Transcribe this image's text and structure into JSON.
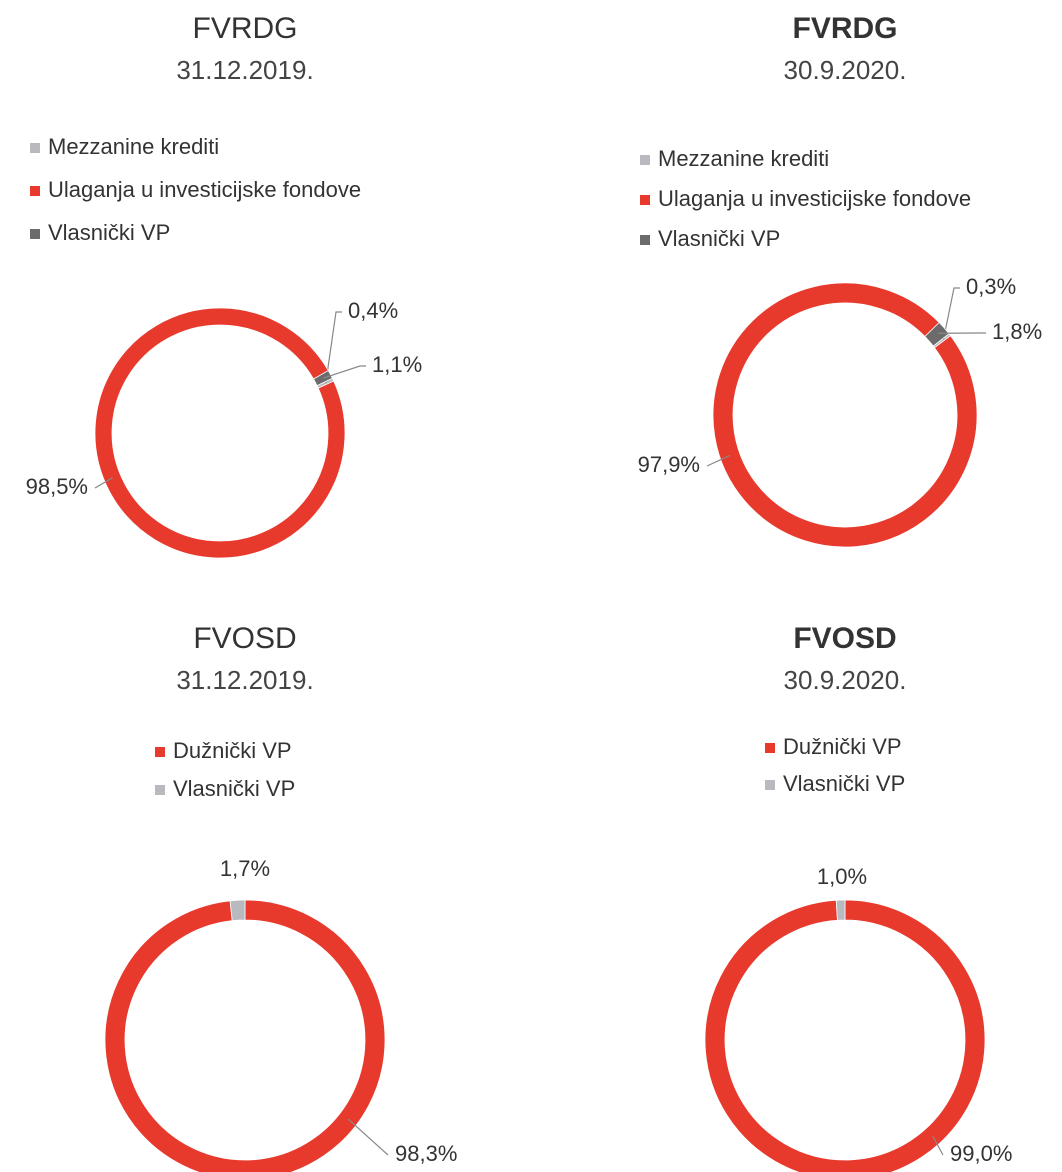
{
  "chart_data": [
    {
      "type": "pie",
      "title": "FVRDG",
      "subtitle": "31.12.2019.",
      "categories": [
        "Mezzanine krediti",
        "Ulaganja u investicijske fondove",
        "Vlasnički VP"
      ],
      "values": [
        0.4,
        98.5,
        1.1
      ],
      "value_labels": [
        "0,4%",
        "98,5%",
        "1,1%"
      ],
      "colors": [
        "#b9b9c0",
        "#e8392d",
        "#6b6b6b"
      ]
    },
    {
      "type": "pie",
      "title": "FVRDG",
      "subtitle": "30.9.2020.",
      "categories": [
        "Mezzanine krediti",
        "Ulaganja u investicijske fondove",
        "Vlasnički VP"
      ],
      "values": [
        0.3,
        97.9,
        1.8
      ],
      "value_labels": [
        "0,3%",
        "97,9%",
        "1,8%"
      ],
      "colors": [
        "#b9b9c0",
        "#e8392d",
        "#6b6b6b"
      ]
    },
    {
      "type": "pie",
      "title": "FVOSD",
      "subtitle": "31.12.2019.",
      "categories": [
        "Dužnički VP",
        "Vlasnički VP"
      ],
      "values": [
        98.3,
        1.7
      ],
      "value_labels": [
        "98,3%",
        "1,7%"
      ],
      "colors": [
        "#e8392d",
        "#b9b9c0"
      ]
    },
    {
      "type": "pie",
      "title": "FVOSD",
      "subtitle": "30.9.2020.",
      "categories": [
        "Dužnički VP",
        "Vlasnički VP"
      ],
      "values": [
        99.0,
        1.0
      ],
      "value_labels": [
        "99,0%",
        "1,0%"
      ],
      "colors": [
        "#e8392d",
        "#b9b9c0"
      ]
    }
  ]
}
